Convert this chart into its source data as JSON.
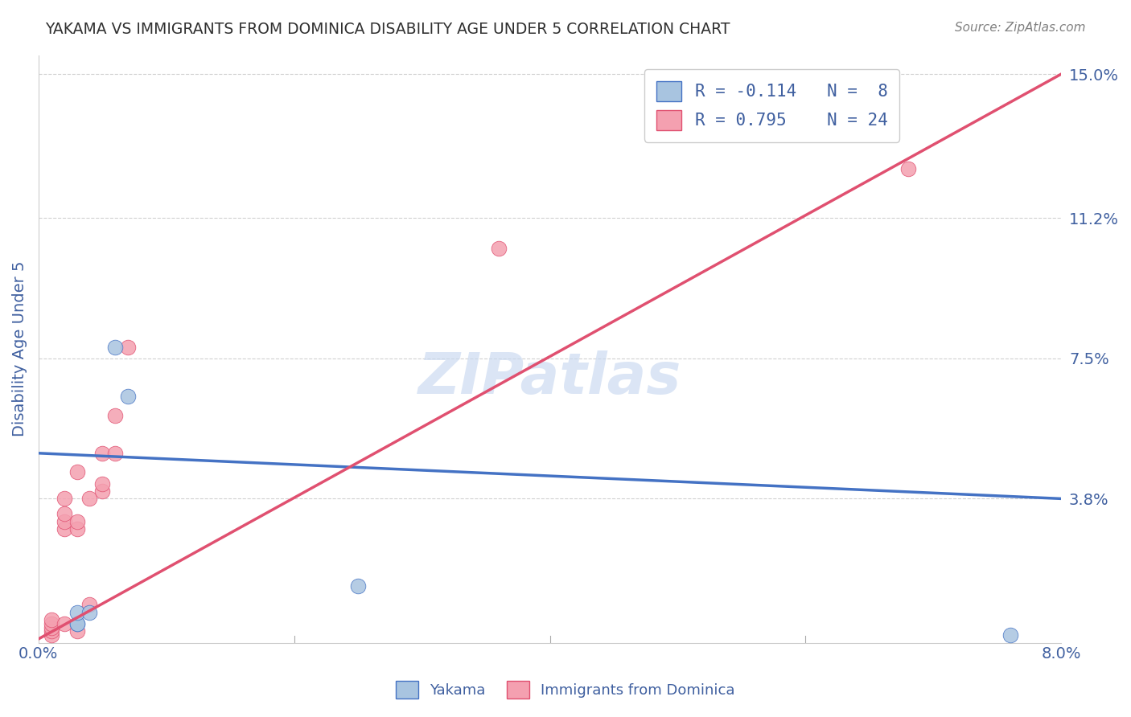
{
  "title": "YAKAMA VS IMMIGRANTS FROM DOMINICA DISABILITY AGE UNDER 5 CORRELATION CHART",
  "source": "Source: ZipAtlas.com",
  "xlabel": "",
  "ylabel": "Disability Age Under 5",
  "xlim": [
    0.0,
    0.08
  ],
  "ylim": [
    0.0,
    0.155
  ],
  "yticks_right": [
    0.038,
    0.075,
    0.112,
    0.15
  ],
  "ytick_right_labels": [
    "3.8%",
    "7.5%",
    "11.2%",
    "15.0%"
  ],
  "yakama_R": -0.114,
  "yakama_N": 8,
  "dominica_R": 0.795,
  "dominica_N": 24,
  "yakama_color": "#a8c4e0",
  "dominica_color": "#f4a0b0",
  "yakama_line_color": "#4472c4",
  "dominica_line_color": "#e05070",
  "legend_label_yakama": "Yakama",
  "legend_label_dominica": "Immigrants from Dominica",
  "watermark": "ZIPatlas",
  "watermark_color": "#c8d8f0",
  "background_color": "#ffffff",
  "grid_color": "#d0d0d0",
  "title_color": "#303030",
  "axis_label_color": "#4060a0",
  "tick_label_color": "#4060a0",
  "yakama_line_x": [
    0.0,
    0.08
  ],
  "yakama_line_y": [
    0.05,
    0.038
  ],
  "dominica_line_x": [
    0.0,
    0.08
  ],
  "dominica_line_y": [
    0.001,
    0.15
  ],
  "yakama_x": [
    0.003,
    0.003,
    0.003,
    0.004,
    0.006,
    0.007,
    0.025,
    0.076
  ],
  "yakama_y": [
    0.005,
    0.005,
    0.008,
    0.008,
    0.078,
    0.065,
    0.015,
    0.002
  ],
  "dominica_x": [
    0.001,
    0.001,
    0.001,
    0.001,
    0.001,
    0.002,
    0.002,
    0.002,
    0.002,
    0.002,
    0.003,
    0.003,
    0.003,
    0.003,
    0.004,
    0.004,
    0.005,
    0.005,
    0.005,
    0.006,
    0.006,
    0.007,
    0.036,
    0.068
  ],
  "dominica_y": [
    0.002,
    0.003,
    0.004,
    0.005,
    0.006,
    0.005,
    0.03,
    0.032,
    0.034,
    0.038,
    0.003,
    0.03,
    0.032,
    0.045,
    0.01,
    0.038,
    0.04,
    0.042,
    0.05,
    0.05,
    0.06,
    0.078,
    0.104,
    0.125
  ]
}
